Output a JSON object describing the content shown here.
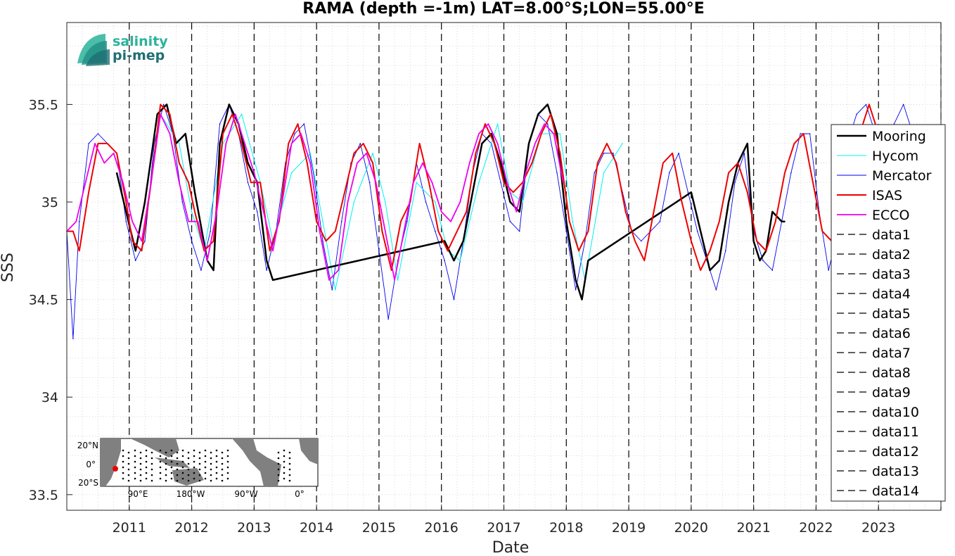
{
  "chart_data": {
    "type": "line",
    "title": "RAMA (depth =-1m) LAT=8.00°S;LON=55.00°E",
    "xlabel": "Date",
    "ylabel": "SSS",
    "xlim": [
      2010.0,
      2024.0
    ],
    "ylim": [
      33.42,
      35.92
    ],
    "x_ticks": [
      2011,
      2012,
      2013,
      2014,
      2015,
      2016,
      2017,
      2018,
      2019,
      2020,
      2021,
      2022,
      2023
    ],
    "y_ticks": [
      33.5,
      34,
      34.5,
      35,
      35.5
    ],
    "y_tick_labels": [
      "33.5",
      "34",
      "34.5",
      "35",
      "35.5"
    ],
    "grid": "minor dotted",
    "legend_position": "right",
    "series": [
      {
        "name": "Mooring",
        "color": "#000000",
        "x": [
          2010.8,
          2010.95,
          2011.1,
          2011.25,
          2011.45,
          2011.6,
          2011.75,
          2011.9,
          2012.05,
          2012.25,
          2012.35,
          2012.45,
          2012.6,
          2012.75,
          2012.9,
          2013.05,
          2013.2,
          2013.3,
          2016.05,
          2016.2,
          2016.35,
          2016.5,
          2016.65,
          2016.8,
          2016.95,
          2017.1,
          2017.25,
          2017.4,
          2017.55,
          2017.7,
          2017.85,
          2018.0,
          2018.15,
          2018.25,
          2018.35,
          2020.0,
          2020.15,
          2020.3,
          2020.45,
          2020.6,
          2020.75,
          2020.9,
          2021.0,
          2021.1,
          2021.2,
          2021.3,
          2021.45,
          2021.5
        ],
        "y": [
          35.15,
          34.95,
          34.75,
          35.0,
          35.45,
          35.5,
          35.3,
          35.35,
          35.05,
          34.7,
          34.65,
          35.3,
          35.5,
          35.4,
          35.2,
          35.1,
          34.7,
          34.6,
          34.8,
          34.7,
          34.8,
          35.05,
          35.3,
          35.35,
          35.2,
          35.0,
          34.95,
          35.3,
          35.45,
          35.5,
          35.35,
          34.9,
          34.6,
          34.5,
          34.7,
          35.05,
          34.85,
          34.65,
          34.7,
          35.0,
          35.2,
          35.3,
          34.8,
          34.7,
          34.75,
          34.95,
          34.9,
          34.9
        ]
      },
      {
        "name": "Hycom",
        "color": "#00f0f0",
        "x": [
          2011.5,
          2011.8,
          2012.0,
          2012.2,
          2012.5,
          2012.8,
          2013.1,
          2013.3,
          2013.6,
          2013.9,
          2014.1,
          2014.3,
          2014.6,
          2014.9,
          2015.1,
          2015.3,
          2015.6,
          2015.9,
          2016.1,
          2016.3,
          2016.6,
          2016.9,
          2017.1,
          2017.3,
          2017.6,
          2017.9,
          2018.1,
          2018.3,
          2018.6,
          2018.9
        ],
        "y": [
          35.45,
          35.3,
          34.95,
          34.75,
          35.3,
          35.45,
          35.1,
          34.8,
          35.15,
          35.25,
          34.9,
          34.55,
          35.0,
          35.25,
          35.0,
          34.6,
          35.1,
          35.0,
          34.75,
          34.7,
          35.1,
          35.4,
          35.05,
          35.0,
          35.35,
          35.35,
          34.9,
          34.6,
          35.15,
          35.3
        ]
      },
      {
        "name": "Mercator",
        "color": "#0000ee",
        "x": [
          2010.0,
          2010.1,
          2010.2,
          2010.35,
          2010.5,
          2010.65,
          2010.8,
          2010.95,
          2011.1,
          2011.25,
          2011.4,
          2011.55,
          2011.7,
          2011.85,
          2012.0,
          2012.15,
          2012.3,
          2012.45,
          2012.6,
          2012.75,
          2012.9,
          2013.05,
          2013.2,
          2013.35,
          2013.5,
          2013.65,
          2013.8,
          2013.95,
          2014.1,
          2014.25,
          2014.4,
          2014.55,
          2014.7,
          2014.85,
          2015.0,
          2015.15,
          2015.3,
          2015.45,
          2015.6,
          2015.75,
          2015.9,
          2016.05,
          2016.2,
          2016.35,
          2016.5,
          2016.65,
          2016.8,
          2016.95,
          2017.1,
          2017.25,
          2017.4,
          2017.55,
          2017.7,
          2017.85,
          2018.0,
          2018.15,
          2018.3,
          2018.45,
          2018.6,
          2018.75,
          2018.9,
          2019.05,
          2019.2,
          2019.35,
          2019.5,
          2019.65,
          2019.8,
          2019.95,
          2020.1,
          2020.25,
          2020.4,
          2020.55,
          2020.7,
          2020.85,
          2021.0,
          2021.15,
          2021.3,
          2021.45,
          2021.6,
          2021.75,
          2021.9,
          2022.05,
          2022.2,
          2022.35,
          2022.5,
          2022.65,
          2022.8,
          2022.95,
          2023.1,
          2023.25,
          2023.4,
          2023.55,
          2023.7
        ],
        "y": [
          34.85,
          34.3,
          34.9,
          35.3,
          35.35,
          35.3,
          35.25,
          34.9,
          34.7,
          34.8,
          35.3,
          35.5,
          35.35,
          35.0,
          34.8,
          34.65,
          34.85,
          35.4,
          35.5,
          35.35,
          35.1,
          34.95,
          34.65,
          34.85,
          35.2,
          35.35,
          35.4,
          35.15,
          34.8,
          34.55,
          34.9,
          35.2,
          35.3,
          35.1,
          34.75,
          34.4,
          34.7,
          34.9,
          35.2,
          35.0,
          34.85,
          34.7,
          34.5,
          34.8,
          35.15,
          35.35,
          35.3,
          35.1,
          34.9,
          34.85,
          35.3,
          35.45,
          35.4,
          35.15,
          34.85,
          34.55,
          34.8,
          35.15,
          35.25,
          35.25,
          35.05,
          34.85,
          34.8,
          34.85,
          34.9,
          35.15,
          35.25,
          35.05,
          34.85,
          34.7,
          34.55,
          34.75,
          35.1,
          35.25,
          34.85,
          34.7,
          34.65,
          34.9,
          35.15,
          35.35,
          35.35,
          34.95,
          34.65,
          34.85,
          35.3,
          35.45,
          35.5,
          35.35,
          35.1,
          35.4,
          35.5,
          35.35,
          35.1
        ]
      },
      {
        "name": "ISAS",
        "color": "#ee0000",
        "x": [
          2010.0,
          2010.1,
          2010.2,
          2010.35,
          2010.5,
          2010.65,
          2010.8,
          2010.95,
          2011.05,
          2011.2,
          2011.35,
          2011.5,
          2011.65,
          2011.8,
          2011.95,
          2012.05,
          2012.2,
          2012.35,
          2012.5,
          2012.65,
          2012.8,
          2012.95,
          2013.1,
          2013.25,
          2013.4,
          2013.55,
          2013.7,
          2013.85,
          2014.0,
          2014.15,
          2014.3,
          2014.45,
          2014.6,
          2014.75,
          2014.9,
          2015.05,
          2015.2,
          2015.35,
          2015.5,
          2015.65,
          2015.8,
          2015.95,
          2016.1,
          2016.25,
          2016.4,
          2016.55,
          2016.7,
          2016.85,
          2017.0,
          2017.15,
          2017.3,
          2017.45,
          2017.6,
          2017.75,
          2017.9,
          2018.05,
          2018.2,
          2018.35,
          2018.5,
          2018.65,
          2018.8,
          2018.95,
          2019.1,
          2019.25,
          2019.4,
          2019.55,
          2019.7,
          2019.85,
          2020.0,
          2020.15,
          2020.3,
          2020.45,
          2020.6,
          2020.75,
          2020.9,
          2021.05,
          2021.2,
          2021.35,
          2021.5,
          2021.65,
          2021.8,
          2021.95,
          2022.1,
          2022.25,
          2022.4,
          2022.55,
          2022.7,
          2022.85,
          2023.0
        ],
        "y": [
          34.85,
          34.85,
          34.75,
          35.05,
          35.3,
          35.3,
          35.25,
          35.0,
          34.8,
          34.75,
          35.1,
          35.5,
          35.45,
          35.2,
          35.1,
          34.95,
          34.75,
          34.8,
          35.35,
          35.45,
          35.3,
          35.1,
          35.1,
          34.75,
          34.9,
          35.3,
          35.4,
          35.2,
          34.9,
          34.8,
          34.85,
          35.05,
          35.25,
          35.3,
          35.2,
          34.85,
          34.65,
          34.9,
          35.0,
          35.3,
          35.1,
          34.85,
          34.75,
          34.85,
          34.95,
          35.25,
          35.4,
          35.3,
          35.1,
          35.05,
          35.1,
          35.2,
          35.35,
          35.45,
          35.25,
          34.9,
          34.75,
          34.85,
          35.2,
          35.3,
          35.2,
          34.95,
          34.8,
          34.7,
          34.95,
          35.2,
          35.25,
          35.0,
          34.8,
          34.65,
          34.75,
          34.9,
          35.15,
          35.2,
          35.05,
          34.8,
          34.75,
          34.9,
          35.15,
          35.3,
          35.35,
          35.1,
          34.85,
          34.8,
          35.0,
          35.15,
          35.35,
          35.5,
          35.35
        ]
      },
      {
        "name": "ECCO",
        "color": "#ee00ee",
        "x": [
          2010.0,
          2010.15,
          2010.3,
          2010.45,
          2010.6,
          2010.75,
          2010.9,
          2011.05,
          2011.2,
          2011.35,
          2011.5,
          2011.65,
          2011.8,
          2011.95,
          2012.1,
          2012.25,
          2012.4,
          2012.55,
          2012.7,
          2012.85,
          2013.0,
          2013.15,
          2013.3,
          2013.45,
          2013.6,
          2013.75,
          2013.9,
          2014.05,
          2014.2,
          2014.35,
          2014.5,
          2014.65,
          2014.8,
          2014.95,
          2015.1,
          2015.25,
          2015.4,
          2015.55,
          2015.7,
          2015.85,
          2016.0,
          2016.15,
          2016.3,
          2016.45,
          2016.6,
          2016.75,
          2016.9,
          2017.05,
          2017.2,
          2017.35,
          2017.5,
          2017.65,
          2017.8,
          2017.95
        ],
        "y": [
          34.85,
          34.9,
          35.1,
          35.3,
          35.2,
          35.25,
          35.1,
          34.9,
          34.8,
          35.1,
          35.45,
          35.35,
          35.1,
          34.9,
          34.9,
          34.7,
          34.95,
          35.3,
          35.45,
          35.3,
          35.15,
          34.95,
          34.75,
          35.0,
          35.3,
          35.35,
          35.2,
          34.85,
          34.6,
          34.65,
          35.0,
          35.2,
          35.25,
          35.1,
          34.85,
          34.6,
          34.85,
          35.1,
          35.2,
          35.1,
          34.95,
          34.9,
          35.0,
          35.2,
          35.35,
          35.4,
          35.3,
          35.1,
          34.95,
          35.15,
          35.3,
          35.4,
          35.35,
          35.1
        ]
      }
    ],
    "vertical_lines": {
      "style": "dashed",
      "color": "#000000",
      "names": [
        "data1",
        "data2",
        "data3",
        "data4",
        "data5",
        "data6",
        "data7",
        "data8",
        "data9",
        "data10",
        "data11",
        "data12",
        "data13",
        "data14"
      ],
      "x": [
        2011.0,
        2012.0,
        2013.0,
        2014.0,
        2015.0,
        2016.0,
        2017.0,
        2018.0,
        2019.0,
        2020.0,
        2021.0,
        2022.0,
        2023.0,
        2024.0
      ]
    }
  },
  "logo": {
    "line1": "salinity",
    "line2": "pi-mep",
    "color1": "#2bb39a",
    "color2": "#1f6f73"
  },
  "inset_map": {
    "lat_labels": [
      "20°N",
      "0°",
      "20°S"
    ],
    "lon_labels": [
      "90°E",
      "180°W",
      "90°W",
      "0°"
    ]
  }
}
